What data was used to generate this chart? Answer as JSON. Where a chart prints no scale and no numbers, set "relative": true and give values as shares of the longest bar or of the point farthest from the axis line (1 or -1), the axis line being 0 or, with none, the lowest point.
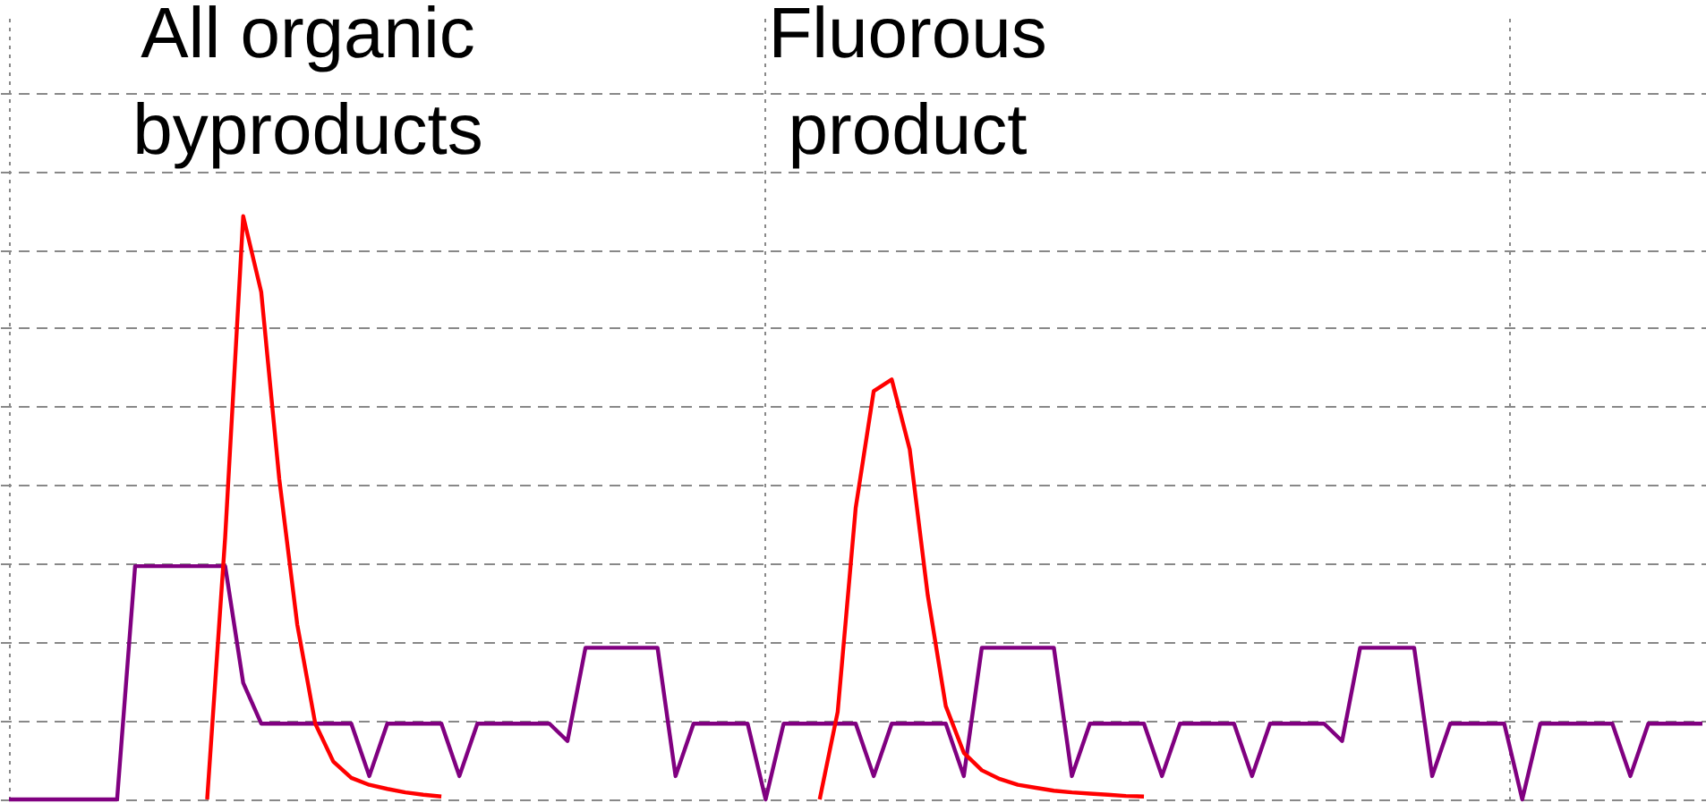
{
  "chart_data": {
    "type": "line",
    "relative": true,
    "grid": true,
    "tick_labels": false,
    "annotations": [
      "All organic\nbyproducts",
      "Fluorous\nproduct"
    ],
    "categories": [
      null,
      null,
      null,
      null,
      null,
      null,
      null,
      null,
      null,
      null,
      null,
      null,
      null,
      null,
      null,
      null,
      null,
      null,
      null,
      null,
      null,
      null,
      null,
      null,
      null,
      null,
      null,
      null,
      null,
      null,
      null,
      null,
      null,
      null,
      null,
      null,
      null,
      null,
      null,
      null,
      null,
      null,
      null,
      null,
      null,
      null,
      null,
      null,
      null,
      null,
      null,
      null,
      null,
      null,
      null,
      null,
      null,
      null,
      null,
      null,
      null,
      null,
      null,
      null,
      null,
      null,
      null,
      null,
      null,
      null,
      null,
      null,
      null,
      null,
      null,
      null,
      null,
      null,
      null,
      null,
      null,
      null,
      null,
      null,
      null,
      null,
      null,
      null,
      null,
      null,
      null,
      null,
      null,
      null,
      null
    ],
    "series": [
      {
        "color": "#800080",
        "values": [
          0,
          0,
          0,
          0,
          0,
          0,
          0,
          0.4,
          0.4,
          0.4,
          0.4,
          0.4,
          0.4,
          0.2,
          0.13,
          0.13,
          0.13,
          0.13,
          0.13,
          0.13,
          0.04,
          0.13,
          0.13,
          0.13,
          0.13,
          0.04,
          0.13,
          0.13,
          0.13,
          0.13,
          0.13,
          0.1,
          0.26,
          0.26,
          0.26,
          0.26,
          0.26,
          0.04,
          0.13,
          0.13,
          0.13,
          0.13,
          0,
          0.13,
          0.13,
          0.13,
          0.13,
          0.13,
          0.04,
          0.13,
          0.13,
          0.13,
          0.13,
          0.04,
          0.26,
          0.26,
          0.26,
          0.26,
          0.26,
          0.04,
          0.13,
          0.13,
          0.13,
          0.13,
          0.04,
          0.13,
          0.13,
          0.13,
          0.13,
          0.04,
          0.13,
          0.13,
          0.13,
          0.13,
          0.1,
          0.26,
          0.26,
          0.26,
          0.26,
          0.04,
          0.13,
          0.13,
          0.13,
          0.13,
          0,
          0.13,
          0.13,
          0.13,
          0.13,
          0.13,
          0.04,
          0.13,
          0.13,
          0.13,
          0.13
        ]
      },
      {
        "color": "#ff0000",
        "values": [
          null,
          null,
          null,
          null,
          null,
          null,
          null,
          null,
          null,
          null,
          null,
          0,
          0.45,
          1.0,
          0.87,
          0.55,
          0.3,
          0.13,
          0.065,
          0.037,
          0.025,
          0.018,
          0.012,
          0.008,
          0.005,
          null,
          null,
          null,
          null,
          null,
          null,
          null,
          null,
          null,
          null,
          null,
          null,
          null,
          null,
          null,
          null,
          null,
          null,
          null,
          null,
          0,
          0.15,
          0.5,
          0.7,
          0.72,
          0.6,
          0.35,
          0.16,
          0.08,
          0.05,
          0.035,
          0.025,
          0.02,
          0.015,
          0.012,
          0.01,
          0.008,
          0.006,
          0.005,
          null,
          null,
          null,
          null,
          null,
          null,
          null,
          null,
          null,
          null,
          null,
          null,
          null,
          null,
          null,
          null,
          null,
          null,
          null,
          null,
          null,
          null,
          null,
          null,
          null,
          null,
          null,
          null,
          null,
          null,
          null
        ]
      }
    ]
  }
}
